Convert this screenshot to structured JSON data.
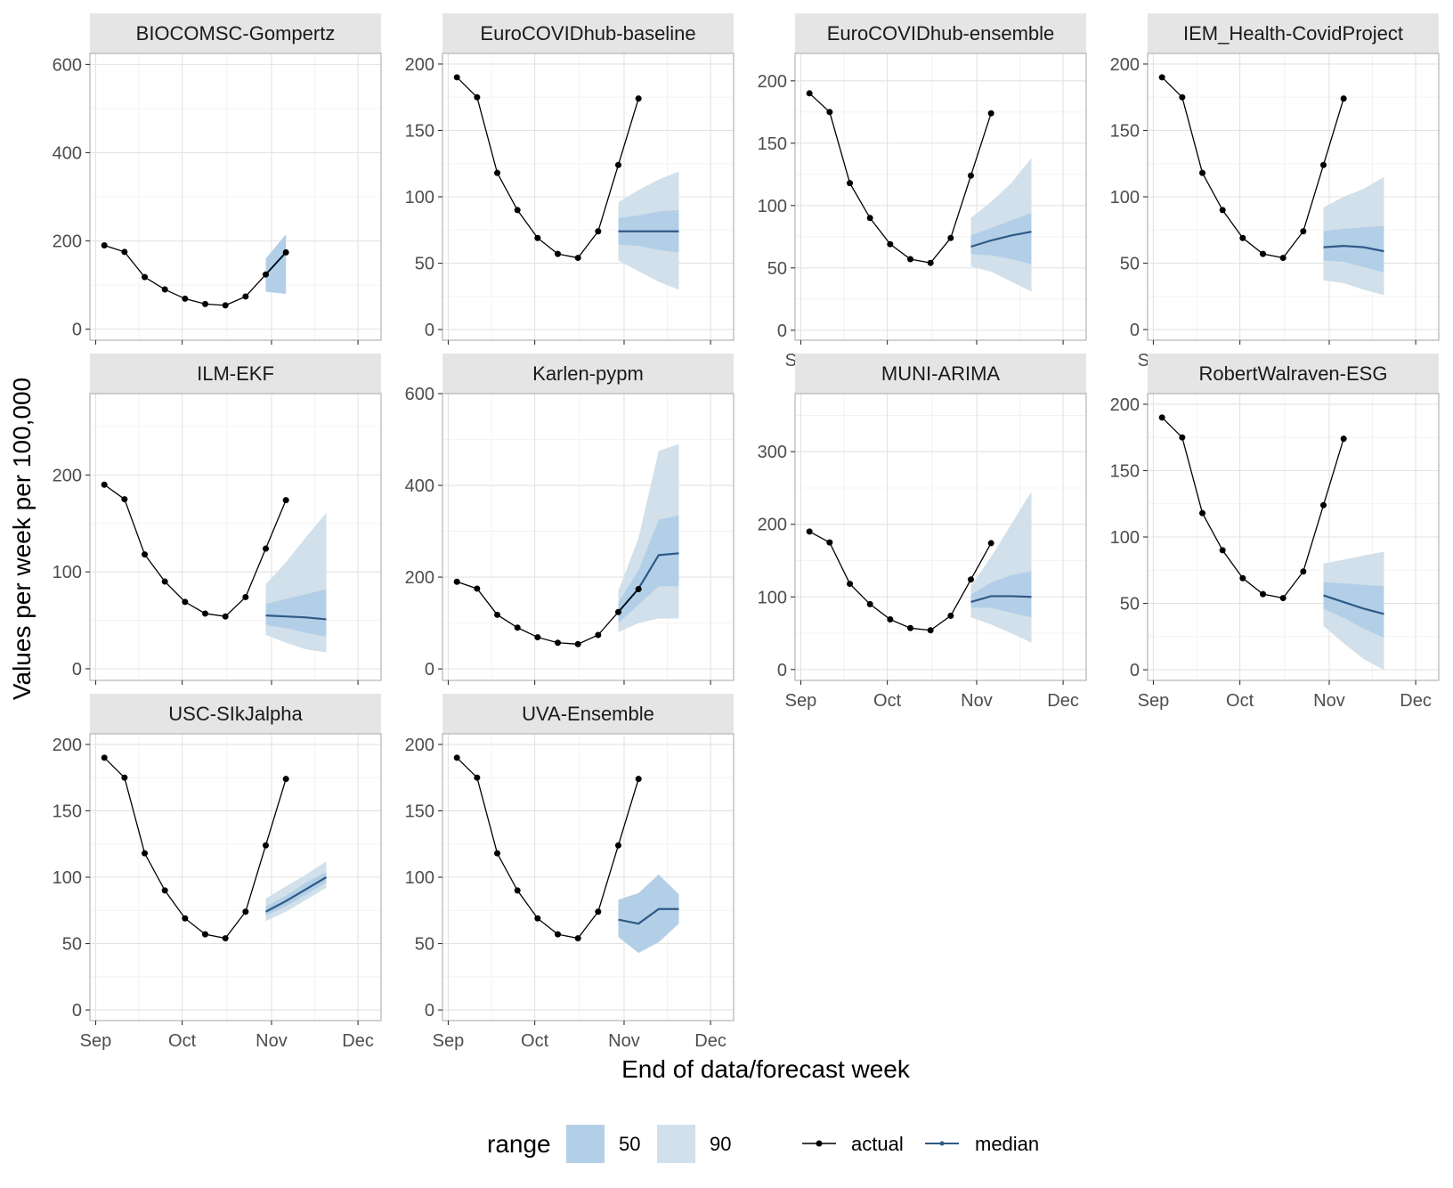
{
  "chart_data": {
    "type": "line",
    "xlabel": "End of data/forecast week",
    "ylabel": "Values per week per 100,000",
    "x_ticks": [
      {
        "date": "2021-09-01",
        "label": "Sep"
      },
      {
        "date": "2021-10-01",
        "label": "Oct"
      },
      {
        "date": "2021-11-01",
        "label": "Nov"
      },
      {
        "date": "2021-12-01",
        "label": "Dec"
      }
    ],
    "xlim": [
      "2021-08-30",
      "2021-12-09"
    ],
    "grid": true,
    "legend": {
      "placement": "bottom",
      "range_title": "range",
      "range_items": [
        {
          "label": "50",
          "color": "#b3cfe8"
        },
        {
          "label": "90",
          "color": "#d1e0ea"
        }
      ],
      "line_items": [
        {
          "label": "actual",
          "color": "#000000"
        },
        {
          "label": "median",
          "color": "#2e5a85"
        }
      ]
    },
    "actual": {
      "dates": [
        "2021-09-04",
        "2021-09-11",
        "2021-09-18",
        "2021-09-25",
        "2021-10-02",
        "2021-10-09",
        "2021-10-16",
        "2021-10-23",
        "2021-10-30",
        "2021-11-06"
      ],
      "values": [
        190,
        175,
        118,
        90,
        69,
        57,
        54,
        74,
        124,
        174
      ]
    },
    "forecast_dates": [
      "2021-10-30",
      "2021-11-06",
      "2021-11-13",
      "2021-11-20"
    ],
    "panels": [
      {
        "title": "BIOCOMSC-Gompertz",
        "ylim": [
          -25,
          625
        ],
        "yticks": [
          0,
          200,
          400,
          600
        ],
        "forecast_dates": [
          "2021-10-30",
          "2021-11-06"
        ],
        "median": [
          124,
          174
        ],
        "q50": [
          [
            85,
            160
          ],
          [
            80,
            215
          ]
        ],
        "q90": [
          [
            85,
            160
          ],
          [
            80,
            215
          ]
        ]
      },
      {
        "title": "EuroCOVIDhub-baseline",
        "ylim": [
          -8,
          208
        ],
        "yticks": [
          0,
          50,
          100,
          150,
          200
        ],
        "median": [
          74,
          74,
          74,
          74
        ],
        "q50": [
          [
            64,
            84
          ],
          [
            63,
            86
          ],
          [
            60,
            89
          ],
          [
            58,
            90
          ]
        ],
        "q90": [
          [
            52,
            96
          ],
          [
            44,
            105
          ],
          [
            36,
            113
          ],
          [
            30,
            119
          ]
        ]
      },
      {
        "title": "EuroCOVIDhub-ensemble",
        "ylim": [
          -8,
          222
        ],
        "yticks": [
          0,
          50,
          100,
          150,
          200
        ],
        "median": [
          67,
          72,
          76,
          79
        ],
        "q50": [
          [
            61,
            76
          ],
          [
            60,
            82
          ],
          [
            57,
            88
          ],
          [
            53,
            94
          ]
        ],
        "q90": [
          [
            51,
            90
          ],
          [
            47,
            103
          ],
          [
            39,
            118
          ],
          [
            31,
            138
          ]
        ]
      },
      {
        "title": "IEM_Health-CovidProject",
        "ylim": [
          -8,
          208
        ],
        "yticks": [
          0,
          50,
          100,
          150,
          200
        ],
        "median": [
          62,
          63,
          62,
          59
        ],
        "q50": [
          [
            52,
            74
          ],
          [
            51,
            76
          ],
          [
            47,
            77
          ],
          [
            43,
            78
          ]
        ],
        "q90": [
          [
            37,
            92
          ],
          [
            35,
            100
          ],
          [
            30,
            106
          ],
          [
            26,
            115
          ]
        ]
      },
      {
        "title": "ILM-EKF",
        "ylim": [
          -12,
          284
        ],
        "yticks": [
          0,
          100,
          200
        ],
        "median": [
          55,
          54,
          53,
          51
        ],
        "q50": [
          [
            45,
            67
          ],
          [
            42,
            72
          ],
          [
            37,
            77
          ],
          [
            33,
            82
          ]
        ],
        "q90": [
          [
            35,
            87
          ],
          [
            27,
            110
          ],
          [
            20,
            136
          ],
          [
            17,
            161
          ]
        ]
      },
      {
        "title": "Karlen-pypm",
        "ylim": [
          -25,
          600
        ],
        "yticks": [
          0,
          200,
          400,
          600
        ],
        "median": [
          124,
          175,
          248,
          252
        ],
        "q50": [
          [
            100,
            145
          ],
          [
            140,
            215
          ],
          [
            180,
            325
          ],
          [
            180,
            335
          ]
        ],
        "q90": [
          [
            80,
            170
          ],
          [
            100,
            285
          ],
          [
            110,
            475
          ],
          [
            110,
            490
          ]
        ]
      },
      {
        "title": "MUNI-ARIMA",
        "ylim": [
          -15,
          380
        ],
        "yticks": [
          0,
          100,
          200,
          300
        ],
        "median": [
          93,
          101,
          101,
          100
        ],
        "q50": [
          [
            85,
            103
          ],
          [
            85,
            120
          ],
          [
            78,
            130
          ],
          [
            72,
            135
          ]
        ],
        "q90": [
          [
            72,
            115
          ],
          [
            62,
            155
          ],
          [
            50,
            200
          ],
          [
            37,
            245
          ]
        ]
      },
      {
        "title": "RobertWalraven-ESG",
        "ylim": [
          -8,
          208
        ],
        "yticks": [
          0,
          50,
          100,
          150,
          200
        ],
        "median": [
          56,
          51,
          46,
          42
        ],
        "q50": [
          [
            46,
            66
          ],
          [
            39,
            65
          ],
          [
            31,
            64
          ],
          [
            24,
            63
          ]
        ],
        "q90": [
          [
            33,
            80
          ],
          [
            20,
            83
          ],
          [
            8,
            86
          ],
          [
            0,
            89
          ]
        ]
      },
      {
        "title": "USC-SIkJalpha",
        "ylim": [
          -8,
          208
        ],
        "yticks": [
          0,
          50,
          100,
          150,
          200
        ],
        "median": [
          74,
          82,
          91,
          100
        ],
        "q50": [
          [
            71,
            78
          ],
          [
            78,
            86
          ],
          [
            87,
            96
          ],
          [
            96,
            104
          ]
        ],
        "q90": [
          [
            67,
            84
          ],
          [
            74,
            93
          ],
          [
            83,
            102
          ],
          [
            92,
            112
          ]
        ]
      },
      {
        "title": "UVA-Ensemble",
        "ylim": [
          -8,
          208
        ],
        "yticks": [
          0,
          50,
          100,
          150,
          200
        ],
        "median": [
          68,
          65,
          76,
          76
        ],
        "q50": [
          [
            55,
            83
          ],
          [
            43,
            88
          ],
          [
            51,
            102
          ],
          [
            65,
            87
          ]
        ],
        "q90": [
          [
            55,
            83
          ],
          [
            43,
            88
          ],
          [
            51,
            102
          ],
          [
            65,
            87
          ]
        ]
      }
    ]
  }
}
